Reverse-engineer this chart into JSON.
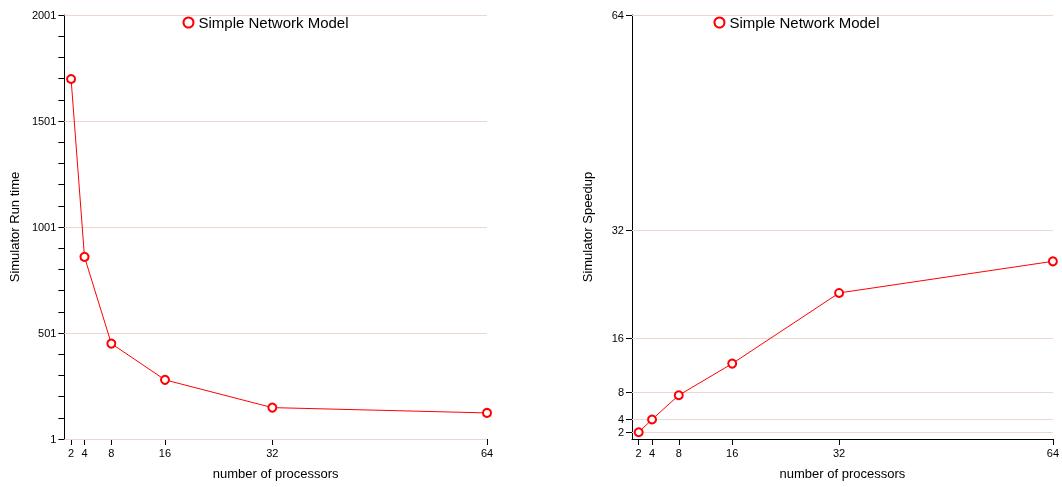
{
  "chart_data": [
    {
      "type": "line",
      "xlabel": "number of processors",
      "ylabel": "Simulator Run time",
      "x": [
        2,
        4,
        8,
        16,
        32,
        64
      ],
      "series": [
        {
          "name": "Simple Network Model",
          "color": "#ff0000",
          "values": [
            1699,
            860,
            451,
            280,
            149,
            124
          ]
        }
      ],
      "xlim": [
        1,
        64
      ],
      "xticks": [
        2,
        4,
        8,
        16,
        32,
        64
      ],
      "ylim": [
        1,
        2001
      ],
      "yticks": [
        1,
        {
          "value": 101,
          "label": null
        },
        {
          "value": 201,
          "label": null
        },
        {
          "value": 301,
          "label": null
        },
        {
          "value": 401,
          "label": null
        },
        501,
        {
          "value": 601,
          "label": null
        },
        {
          "value": 701,
          "label": null
        },
        {
          "value": 801,
          "label": null
        },
        {
          "value": 901,
          "label": null
        },
        1001,
        {
          "value": 1101,
          "label": null
        },
        {
          "value": 1201,
          "label": null
        },
        {
          "value": 1301,
          "label": null
        },
        {
          "value": 1401,
          "label": null
        },
        1501,
        {
          "value": 1601,
          "label": null
        },
        {
          "value": 1701,
          "label": null
        },
        {
          "value": 1801,
          "label": null
        },
        {
          "value": 1901,
          "label": null
        },
        2001
      ],
      "grid": "y",
      "legend": "top",
      "marker": "circle",
      "line_style": "solid"
    },
    {
      "type": "line",
      "xlabel": "number of processors",
      "ylabel": "Simulator Speedup",
      "x": [
        2,
        4,
        8,
        16,
        32,
        64
      ],
      "series": [
        {
          "name": "Simple Network Model",
          "color": "#ff0000",
          "values": [
            2,
            3.9,
            7.5,
            12.2,
            22.7,
            27.4
          ]
        }
      ],
      "xlim": [
        1,
        64
      ],
      "xticks": [
        2,
        4,
        8,
        16,
        32,
        64
      ],
      "ylim": [
        1,
        64
      ],
      "yticks": [
        2,
        4,
        8,
        16,
        32,
        64
      ],
      "grid": "y",
      "legend": "top",
      "marker": "circle",
      "line_style": "solid"
    }
  ]
}
